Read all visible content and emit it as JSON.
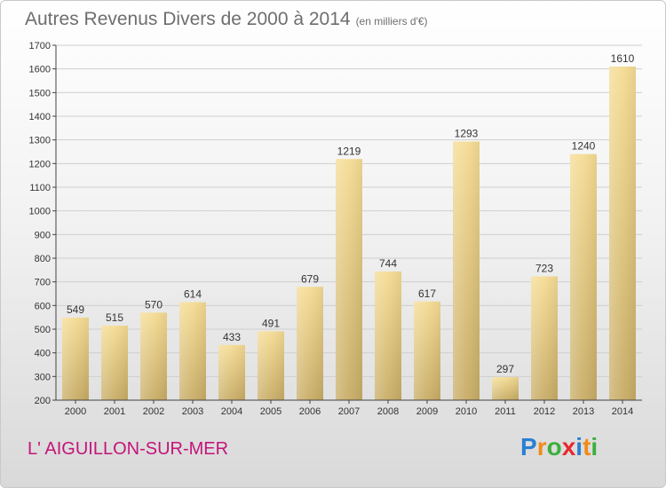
{
  "title": {
    "main": "Autres Revenus Divers de 2000 à 2014",
    "unit": "(en milliers d'€)"
  },
  "commune": "L' AIGUILLON-SUR-MER",
  "logo": {
    "letters": [
      "P",
      "r",
      "o",
      "x",
      "i",
      "t",
      "i"
    ],
    "colors": [
      "#2a7fd4",
      "#f08c1a",
      "#3caf3c",
      "#e8282d",
      "#2a7fd4",
      "#f08c1a",
      "#3caf3c"
    ]
  },
  "colors": {
    "bar_light": "#f5dc94",
    "bar_dark": "#c8ac66",
    "axis": "#444444",
    "grid": "#cfcfcf",
    "title": "#6e6e6e",
    "commune": "#c4147a"
  },
  "chart_data": {
    "type": "bar",
    "categories": [
      "2000",
      "2001",
      "2002",
      "2003",
      "2004",
      "2005",
      "2006",
      "2007",
      "2008",
      "2009",
      "2010",
      "2011",
      "2012",
      "2013",
      "2014"
    ],
    "values": [
      549,
      515,
      570,
      614,
      433,
      491,
      679,
      1219,
      744,
      617,
      1293,
      297,
      723,
      1240,
      1610
    ],
    "title": "Autres Revenus Divers de 2000 à 2014",
    "xlabel": "",
    "ylabel": "",
    "ylim": [
      200,
      1700
    ],
    "yticks": [
      200,
      300,
      400,
      500,
      600,
      700,
      800,
      900,
      1000,
      1100,
      1200,
      1300,
      1400,
      1500,
      1600,
      1700
    ],
    "grid": true,
    "data_labels": true
  }
}
